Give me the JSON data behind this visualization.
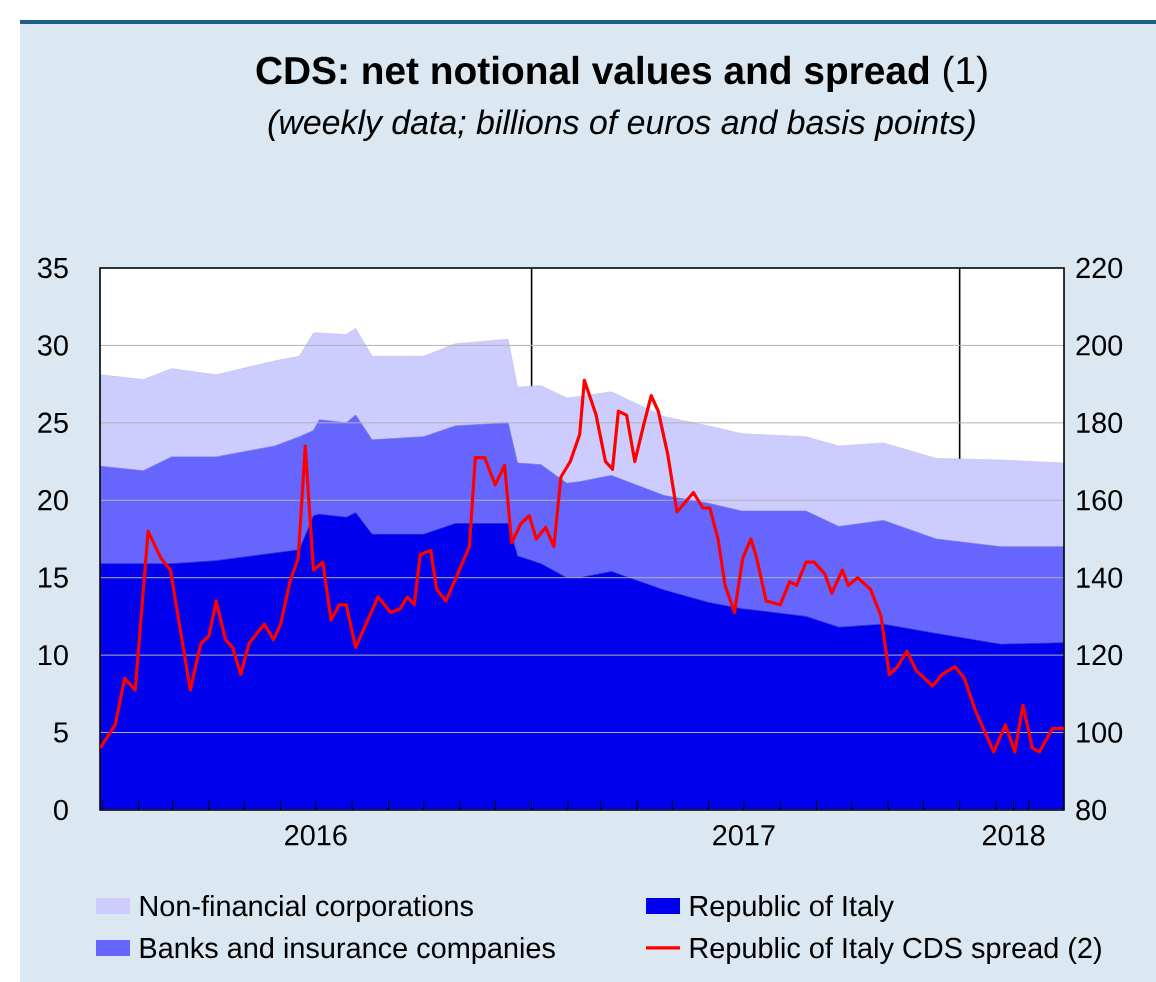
{
  "chart_data": {
    "type": "area",
    "title": "**CDS: net notional values and spread** (1)",
    "subtitle": "(weekly data; billions of euros and basis points)",
    "stacked": true,
    "grid": "y",
    "legend": "bottom",
    "x": [
      "2015-12-30",
      "2016-02-05",
      "2016-02-29",
      "2016-04-07",
      "2016-05-27",
      "2016-06-17",
      "2016-06-29",
      "2016-07-04",
      "2016-07-27",
      "2016-08-04",
      "2016-08-18",
      "2016-10-01",
      "2016-10-28",
      "2016-12-12",
      "2016-12-20",
      "2017-01-09",
      "2017-01-31",
      "2017-02-11",
      "2017-03-10",
      "2017-04-24",
      "2017-06-01",
      "2017-06-29",
      "2017-08-23",
      "2017-09-20",
      "2017-10-28",
      "2017-12-12",
      "2018-02-05",
      "2018-03-31"
    ],
    "series": [
      {
        "name": "Republic of Italy",
        "color": "#0000ee",
        "values": [
          15.9,
          15.9,
          15.9,
          16.1,
          16.6,
          16.8,
          19.0,
          19.1,
          18.9,
          19.2,
          17.8,
          17.8,
          18.5,
          18.5,
          16.4,
          15.9,
          15.0,
          15.0,
          15.4,
          14.2,
          13.4,
          13.0,
          12.5,
          11.8,
          12.0,
          11.4,
          10.7,
          10.8
        ]
      },
      {
        "name": "Banks and insurance companies",
        "color": "#6666ff",
        "values": [
          6.3,
          6.0,
          6.9,
          6.7,
          6.9,
          7.3,
          5.5,
          6.1,
          6.1,
          6.3,
          6.1,
          6.3,
          6.3,
          6.5,
          6.0,
          6.4,
          6.1,
          6.2,
          6.2,
          6.1,
          6.4,
          6.3,
          6.8,
          6.5,
          6.7,
          6.1,
          6.3,
          6.2
        ]
      },
      {
        "name": "Non-financial corporations",
        "color": "#ccccff",
        "values": [
          5.9,
          5.9,
          5.7,
          5.3,
          5.5,
          5.2,
          6.3,
          5.6,
          5.7,
          5.6,
          5.4,
          5.2,
          5.3,
          5.4,
          4.9,
          5.1,
          5.5,
          5.5,
          5.4,
          5.1,
          5.0,
          5.0,
          4.8,
          5.2,
          5.0,
          5.2,
          5.6,
          5.4
        ]
      },
      {
        "name": "Republic of Italy CDS spread (2)",
        "type": "line",
        "axis": "y2",
        "color": "#ff0000",
        "line_style": "solid",
        "x": [
          "2015-12-30",
          "2016-01-12",
          "2016-01-20",
          "2016-01-29",
          "2016-02-09",
          "2016-02-20",
          "2016-02-28",
          "2016-03-16",
          "2016-03-25",
          "2016-04-01",
          "2016-04-07",
          "2016-04-15",
          "2016-04-21",
          "2016-04-28",
          "2016-05-05",
          "2016-05-18",
          "2016-05-26",
          "2016-06-01",
          "2016-06-09",
          "2016-06-16",
          "2016-06-22",
          "2016-06-29",
          "2016-07-07",
          "2016-07-14",
          "2016-07-21",
          "2016-07-27",
          "2016-08-04",
          "2016-08-23",
          "2016-09-03",
          "2016-09-11",
          "2016-09-17",
          "2016-09-23",
          "2016-09-28",
          "2016-10-07",
          "2016-10-12",
          "2016-10-20",
          "2016-11-09",
          "2016-11-14",
          "2016-11-22",
          "2016-12-01",
          "2016-12-09",
          "2016-12-15",
          "2016-12-23",
          "2016-12-30",
          "2017-01-05",
          "2017-01-13",
          "2017-01-20",
          "2017-01-26",
          "2017-02-03",
          "2017-02-11",
          "2017-02-15",
          "2017-02-25",
          "2017-03-05",
          "2017-03-11",
          "2017-03-16",
          "2017-03-23",
          "2017-03-30",
          "2017-04-07",
          "2017-04-13",
          "2017-04-19",
          "2017-04-27",
          "2017-05-05",
          "2017-05-19",
          "2017-05-27",
          "2017-06-02",
          "2017-06-09",
          "2017-06-15",
          "2017-06-23",
          "2017-06-30",
          "2017-07-07",
          "2017-07-12",
          "2017-07-20",
          "2017-08-01",
          "2017-08-09",
          "2017-08-15",
          "2017-08-23",
          "2017-08-30",
          "2017-09-08",
          "2017-09-14",
          "2017-09-23",
          "2017-09-28",
          "2017-10-06",
          "2017-10-17",
          "2017-10-26",
          "2017-11-02",
          "2017-11-09",
          "2017-11-17",
          "2017-11-25",
          "2017-12-09",
          "2017-12-17",
          "2017-12-28",
          "2018-01-05",
          "2018-01-14",
          "2018-01-30",
          "2018-02-09",
          "2018-02-17",
          "2018-02-24",
          "2018-03-04",
          "2018-03-10",
          "2018-03-21",
          "2018-03-31"
        ],
        "values": [
          96,
          102,
          114,
          111,
          152,
          145,
          142,
          111,
          123,
          125,
          134,
          124,
          122,
          115,
          123,
          128,
          124,
          128,
          139,
          145,
          174,
          142,
          144,
          129,
          133,
          133,
          122,
          135,
          131,
          132,
          135,
          133,
          146,
          147,
          137,
          134,
          148,
          171,
          171,
          164,
          169,
          149,
          154,
          156,
          150,
          153,
          148,
          166,
          170,
          177,
          191,
          182,
          170,
          168,
          183,
          182,
          170,
          180,
          187,
          183,
          172,
          157,
          162,
          158,
          158,
          150,
          138,
          131,
          145,
          150,
          145,
          134,
          133,
          139,
          138,
          144,
          144,
          141,
          136,
          142,
          138,
          140,
          137,
          130,
          115,
          117,
          121,
          116,
          112,
          115,
          117,
          114,
          106,
          95,
          102,
          95,
          107,
          96,
          95,
          101,
          101
        ]
      }
    ],
    "xlim": [
      "2015-12-30",
      "2018-03-31"
    ],
    "xticks": [
      {
        "value": "2016-01-01",
        "label": null
      },
      {
        "value": "2016-02-01",
        "label": null
      },
      {
        "value": "2016-03-01",
        "label": null
      },
      {
        "value": "2016-04-01",
        "label": null
      },
      {
        "value": "2016-05-01",
        "label": null
      },
      {
        "value": "2016-06-01",
        "label": null
      },
      {
        "value": "2016-07-01",
        "label": "2016"
      },
      {
        "value": "2016-08-01",
        "label": null
      },
      {
        "value": "2016-09-01",
        "label": null
      },
      {
        "value": "2016-10-01",
        "label": null
      },
      {
        "value": "2016-11-01",
        "label": null
      },
      {
        "value": "2016-12-01",
        "label": null
      },
      {
        "value": "2017-01-01",
        "label": null
      },
      {
        "value": "2017-02-01",
        "label": null
      },
      {
        "value": "2017-03-01",
        "label": null
      },
      {
        "value": "2017-04-01",
        "label": null
      },
      {
        "value": "2017-05-01",
        "label": null
      },
      {
        "value": "2017-06-01",
        "label": null
      },
      {
        "value": "2017-07-01",
        "label": "2017"
      },
      {
        "value": "2017-08-01",
        "label": null
      },
      {
        "value": "2017-09-01",
        "label": null
      },
      {
        "value": "2017-10-01",
        "label": null
      },
      {
        "value": "2017-11-01",
        "label": null
      },
      {
        "value": "2017-12-01",
        "label": null
      },
      {
        "value": "2018-01-01",
        "label": null
      },
      {
        "value": "2018-02-01",
        "label": null
      },
      {
        "value": "2018-02-16",
        "label": "2018"
      },
      {
        "value": "2018-03-01",
        "label": null
      }
    ],
    "ylim": [
      0,
      35
    ],
    "yticks": [
      0,
      5,
      10,
      15,
      20,
      25,
      30,
      35
    ],
    "y2lim": [
      80,
      220
    ],
    "y2ticks": [
      80,
      100,
      120,
      140,
      160,
      180,
      200,
      220
    ],
    "ref_lines": [
      {
        "axis": "x",
        "value": "2017-01-01",
        "color": "#000000"
      },
      {
        "axis": "x",
        "value": "2018-01-01",
        "color": "#000000"
      }
    ]
  }
}
